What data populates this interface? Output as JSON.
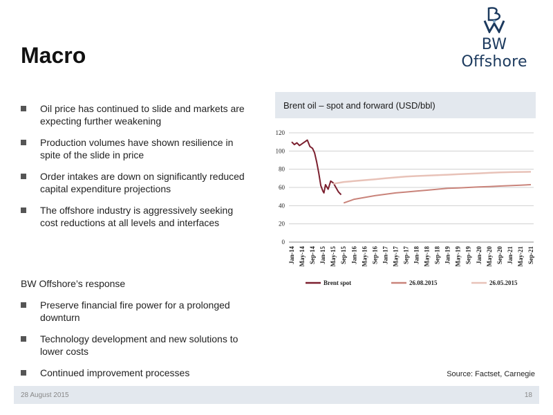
{
  "header": {
    "title": "Macro",
    "logo_text": "BW Offshore"
  },
  "bullets": [
    "Oil price has continued to slide and markets are expecting further weakening",
    "Production volumes have shown resilience in spite of the slide in price",
    "Order intakes are down on significantly reduced capital expenditure projections",
    "The offshore industry is aggressively seeking cost reductions at all levels and interfaces"
  ],
  "response": {
    "heading": "BW Offshore’s response",
    "bullets": [
      "Preserve financial fire power for a prolonged downturn",
      "Technology development and new solutions to lower costs",
      "Continued improvement processes"
    ]
  },
  "chart_header": "Brent oil – spot and forward (USD/bbl)",
  "source": "Source: Factset, Carnegie",
  "footer": {
    "date": "28 August 2015",
    "page": "18"
  },
  "colors": {
    "brent_spot": "#7b1f2e",
    "fwd_aug": "#c9837a",
    "fwd_may": "#e8c2b8",
    "logo": "#1c3a5e"
  },
  "chart_data": {
    "type": "line",
    "title": "Brent oil – spot and forward (USD/bbl)",
    "ylim": [
      0,
      120
    ],
    "yticks": [
      0,
      20,
      40,
      60,
      80,
      100,
      120
    ],
    "grid": true,
    "legend_position": "bottom",
    "xlabels": [
      "Jan-14",
      "May-14",
      "Sep-14",
      "Jan-15",
      "May-15",
      "Sep-15",
      "Jan-16",
      "May-16",
      "Sep-16",
      "Jan-17",
      "May-17",
      "Sep-17",
      "Jan-18",
      "May-18",
      "Sep-18",
      "Jan-19",
      "May-19",
      "Sep-19",
      "Jan-20",
      "May-20",
      "Sep-20",
      "Jan-21",
      "May-21",
      "Sep-21"
    ],
    "series": [
      {
        "name": "Brent spot",
        "x": [
          0,
          0.25,
          0.5,
          0.75,
          1,
          1.25,
          1.5,
          1.75,
          2,
          2.2,
          2.4,
          2.6,
          2.8,
          3,
          3.1,
          3.25,
          3.5,
          3.75,
          4,
          4.25,
          4.5,
          4.75
        ],
        "y": [
          110,
          107,
          109,
          106,
          108,
          110,
          112,
          105,
          103,
          98,
          88,
          76,
          62,
          56,
          54,
          63,
          58,
          67,
          65,
          60,
          55,
          52
        ]
      },
      {
        "name": "26.08.2015",
        "x": [
          5,
          5.5,
          6,
          7,
          8,
          9,
          10,
          11,
          12,
          13,
          14,
          15,
          16,
          17,
          18,
          19,
          20,
          21,
          22,
          23
        ],
        "y": [
          43,
          45,
          47,
          49,
          51,
          52.5,
          54,
          55,
          56,
          57,
          58,
          59,
          59.5,
          60,
          60.5,
          61,
          61.5,
          62,
          62.5,
          63
        ]
      },
      {
        "name": "26.05.2015",
        "x": [
          4,
          5,
          6,
          7,
          8,
          9,
          10,
          11,
          12,
          13,
          14,
          15,
          16,
          17,
          18,
          19,
          20,
          21,
          22,
          23
        ],
        "y": [
          64,
          66,
          67,
          68,
          69,
          70,
          71,
          72,
          72.5,
          73,
          73.5,
          74,
          74.5,
          75,
          75.5,
          76,
          76.5,
          76.8,
          77,
          77.2
        ]
      }
    ]
  }
}
